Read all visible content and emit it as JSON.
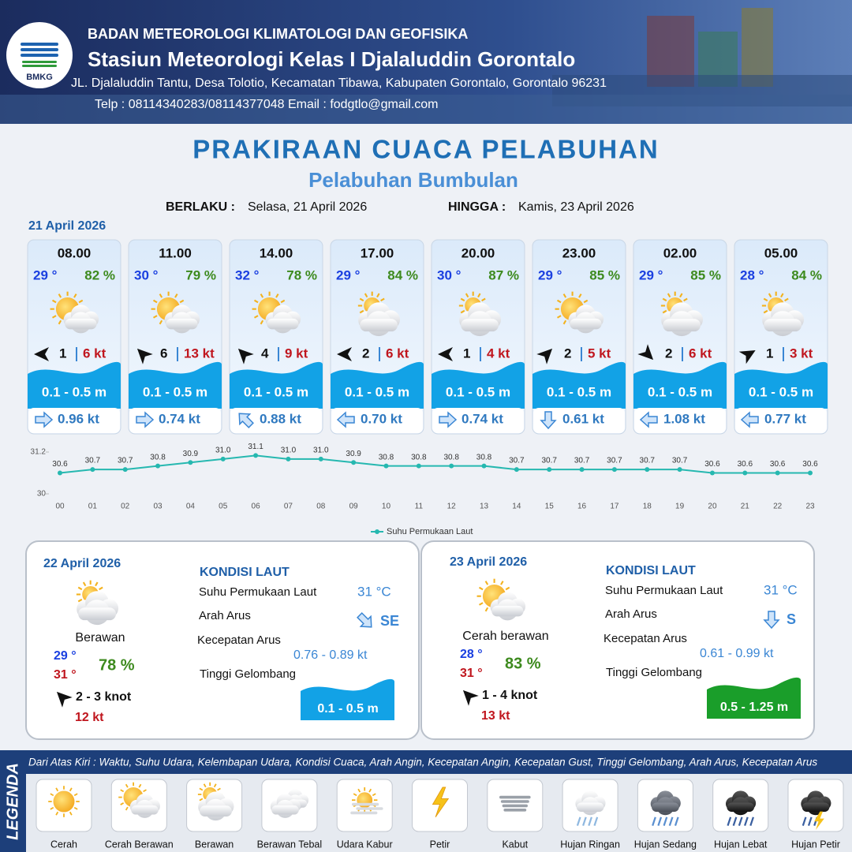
{
  "header": {
    "logo": "BMKG",
    "agency": "BADAN METEOROLOGI KLIMATOLOGI DAN GEOFISIKA",
    "station": "Stasiun Meteorologi Kelas I Djalaluddin Gorontalo",
    "address": "JL. Djalaluddin Tantu, Desa Tolotio, Kecamatan Tibawa, Kabupaten Gorontalo, Gorontalo 96231",
    "contact": "Telp : 08114340283/08114377048 Email : fodgtlo@gmail.com"
  },
  "title": "PRAKIRAAN CUACA PELABUHAN",
  "subtitle": "Pelabuhan Bumbulan",
  "validity": {
    "from_label": "BERLAKU :",
    "from": "Selasa, 21 April 2026",
    "to_label": "HINGGA :",
    "to": "Kamis, 23 April 2026"
  },
  "day1": {
    "date": "21 April 2026",
    "slots": [
      {
        "time": "08.00",
        "temperature": "29 °",
        "humidity": "82 %",
        "wind_speed": "1",
        "gust": "6 kt",
        "wave": "0.1 - 0.5 m",
        "current": "0.96 kt"
      },
      {
        "time": "11.00",
        "temperature": "30 °",
        "humidity": "79 %",
        "wind_speed": "6",
        "gust": "13 kt",
        "wave": "0.1 - 0.5 m",
        "current": "0.74 kt"
      },
      {
        "time": "14.00",
        "temperature": "32 °",
        "humidity": "78 %",
        "wind_speed": "4",
        "gust": "9 kt",
        "wave": "0.1 - 0.5 m",
        "current": "0.88 kt"
      },
      {
        "time": "17.00",
        "temperature": "29 °",
        "humidity": "84 %",
        "wind_speed": "2",
        "gust": "6 kt",
        "wave": "0.1 - 0.5 m",
        "current": "0.70 kt"
      },
      {
        "time": "20.00",
        "temperature": "30 °",
        "humidity": "87 %",
        "wind_speed": "1",
        "gust": "4 kt",
        "wave": "0.1 - 0.5 m",
        "current": "0.74 kt"
      },
      {
        "time": "23.00",
        "temperature": "29 °",
        "humidity": "85 %",
        "wind_speed": "2",
        "gust": "5 kt",
        "wave": "0.1 - 0.5 m",
        "current": "0.61 kt"
      },
      {
        "time": "02.00",
        "temperature": "29 °",
        "humidity": "85 %",
        "wind_speed": "2",
        "gust": "6 kt",
        "wave": "0.1 - 0.5 m",
        "current": "1.08 kt"
      },
      {
        "time": "05.00",
        "temperature": "28 °",
        "humidity": "84 %",
        "wind_speed": "1",
        "gust": "3 kt",
        "wave": "0.1 - 0.5 m",
        "current": "0.77 kt"
      }
    ]
  },
  "chart_data": {
    "type": "line",
    "categories": [
      "00",
      "01",
      "02",
      "03",
      "04",
      "05",
      "06",
      "07",
      "08",
      "09",
      "10",
      "11",
      "12",
      "13",
      "14",
      "15",
      "16",
      "17",
      "18",
      "19",
      "20",
      "21",
      "22",
      "23"
    ],
    "series": [
      {
        "name": "Suhu Permukaan Laut",
        "color": "#26b8b0",
        "values": [
          30.6,
          30.7,
          30.7,
          30.8,
          30.9,
          31.0,
          31.1,
          31.0,
          31.0,
          30.9,
          30.8,
          30.8,
          30.8,
          30.8,
          30.7,
          30.7,
          30.7,
          30.7,
          30.7,
          30.7,
          30.6,
          30.6,
          30.6,
          30.6
        ],
        "value_labels": [
          "30.6",
          "30.7",
          "30.7",
          "30.8",
          "30.9",
          "31.0",
          "31.1",
          "31.0",
          "31.0",
          "30.9",
          "30.8",
          "30.8",
          "30.8",
          "30.8",
          "30.7",
          "30.7",
          "30.7",
          "30.7",
          "30.7",
          "30.7",
          "30.6",
          "30.6",
          "30.6",
          "30.6"
        ]
      }
    ],
    "ylim": [
      30,
      31.2
    ],
    "yticks": [
      30,
      31.2
    ],
    "legend": "bottom",
    "grid": false
  },
  "days": [
    {
      "date": "22 April 2026",
      "condition": "Berawan",
      "temp_min": "29 °",
      "temp_max": "31 °",
      "humidity": "78 %",
      "wind": "2  - 3 knot",
      "gust": "12 kt",
      "sea_title": "KONDISI LAUT",
      "sst_label": "Suhu Permukaan Laut",
      "sst": "31 °C",
      "current_dir_label": "Arah Arus",
      "current_dir": "SE",
      "current_speed_label": "Kecepatan Arus",
      "current_speed": "0.76  - 0.89 kt",
      "wave_label": "Tinggi Gelombang",
      "wave": "0.1 - 0.5 m"
    },
    {
      "date": "23 April 2026",
      "condition": "Cerah berawan",
      "temp_min": "28 °",
      "temp_max": "31 °",
      "humidity": "83 %",
      "wind": "1  - 4 knot",
      "gust": "13 kt",
      "sea_title": "KONDISI LAUT",
      "sst_label": "Suhu Permukaan Laut",
      "sst": "31 °C",
      "current_dir_label": "Arah Arus",
      "current_dir": "S",
      "current_speed_label": "Kecepatan Arus",
      "current_speed": "0.61  - 0.99 kt",
      "wave_label": "Tinggi Gelombang",
      "wave": "0.5 - 1.25 m"
    }
  ],
  "legend": {
    "title": "LEGENDA",
    "description": "Dari Atas Kiri : Waktu, Suhu Udara, Kelembapan Udara, Kondisi Cuaca, Arah Angin, Kecepatan Angin, Kecepatan Gust, Tinggi Gelombang, Arah Arus, Kecepatan Arus",
    "items": [
      "Cerah",
      "Cerah Berawan",
      "Berawan",
      "Berawan Tebal",
      "Udara Kabur",
      "Petir",
      "Kabut",
      "Hujan Ringan",
      "Hujan Sedang",
      "Hujan Lebat",
      "Hujan Petir"
    ]
  }
}
